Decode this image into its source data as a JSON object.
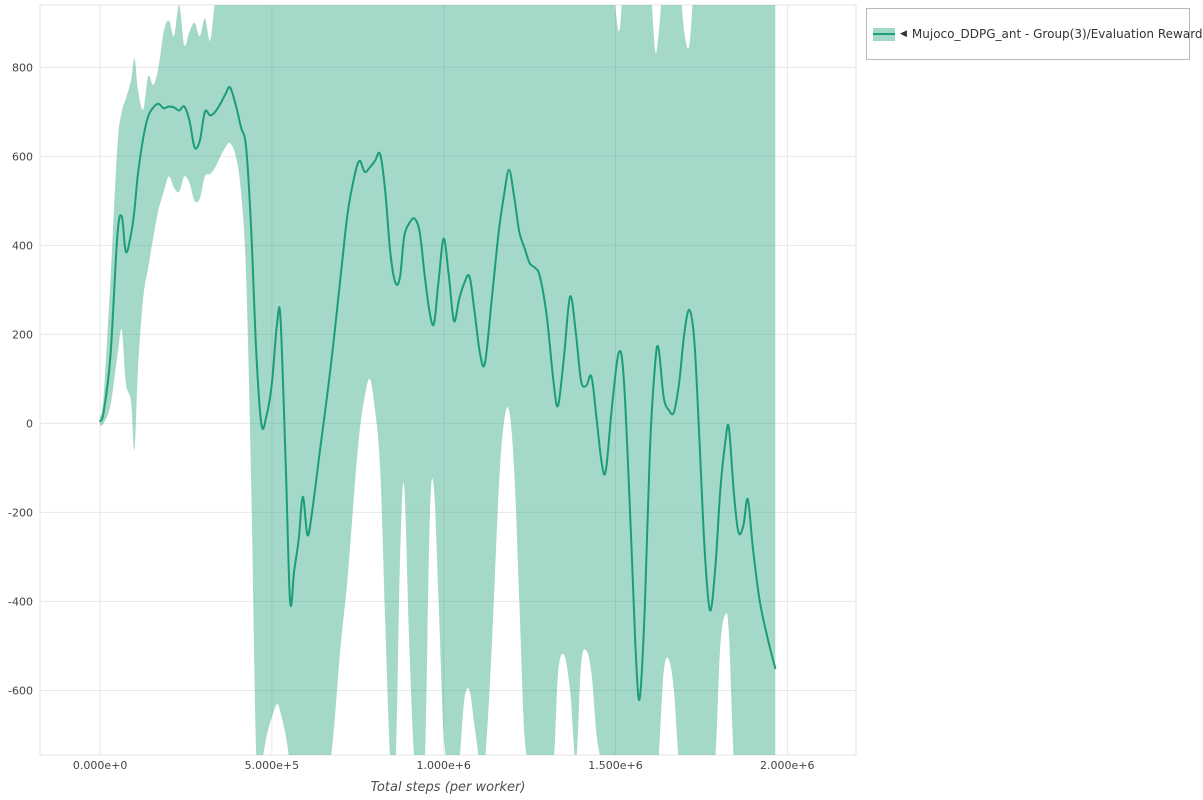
{
  "legend": {
    "collapse_icon": "◀",
    "series_label": "Mujoco_DDPG_ant - Group(3)/Evaluation Reward"
  },
  "axes": {
    "x_title": "Total steps (per worker)"
  },
  "chart_data": {
    "type": "line",
    "title": "",
    "xlabel": "Total steps (per worker)",
    "ylabel": "",
    "legend_entries": [
      "Mujoco_DDPG_ant - Group(3)/Evaluation Reward"
    ],
    "legend_position": "top-right",
    "grid": true,
    "x_scale": 1000000,
    "x_range_e6": [
      -0.175,
      2.2
    ],
    "y_range": [
      -745,
      940
    ],
    "x_ticks": [
      {
        "value_e6": 0.0,
        "label": "0.000e+0"
      },
      {
        "value_e6": 0.5,
        "label": "5.000e+5"
      },
      {
        "value_e6": 1.0,
        "label": "1.000e+6"
      },
      {
        "value_e6": 1.5,
        "label": "1.500e+6"
      },
      {
        "value_e6": 2.0,
        "label": "2.000e+6"
      }
    ],
    "y_ticks": [
      {
        "value": -600,
        "label": "-600"
      },
      {
        "value": -400,
        "label": "-400"
      },
      {
        "value": -200,
        "label": "-200"
      },
      {
        "value": 0,
        "label": "0"
      },
      {
        "value": 200,
        "label": "200"
      },
      {
        "value": 400,
        "label": "400"
      },
      {
        "value": 600,
        "label": "600"
      },
      {
        "value": 800,
        "label": "800"
      }
    ],
    "colors": {
      "line": "#1b9e77",
      "band_fill": "#1b9e77",
      "band_opacity": 0.4,
      "grid": "#e8e8e8",
      "plot_border": "#e4e4e4",
      "axis_text": "#444444",
      "title_text": "#4f4f4f",
      "legend_border": "#b9b9b9"
    },
    "series": [
      {
        "name": "Mujoco_DDPG_ant - Group(3)/Evaluation Reward",
        "x_e6": [
          0.0,
          0.01,
          0.03,
          0.05,
          0.063,
          0.075,
          0.09,
          0.1,
          0.11,
          0.125,
          0.14,
          0.155,
          0.17,
          0.185,
          0.2,
          0.215,
          0.23,
          0.245,
          0.26,
          0.275,
          0.29,
          0.305,
          0.32,
          0.335,
          0.35,
          0.365,
          0.378,
          0.395,
          0.41,
          0.425,
          0.44,
          0.455,
          0.47,
          0.485,
          0.5,
          0.515,
          0.525,
          0.54,
          0.553,
          0.565,
          0.578,
          0.59,
          0.603,
          0.615,
          0.64,
          0.67,
          0.7,
          0.72,
          0.74,
          0.755,
          0.77,
          0.785,
          0.8,
          0.815,
          0.83,
          0.845,
          0.86,
          0.873,
          0.885,
          0.9,
          0.915,
          0.93,
          0.945,
          0.96,
          0.972,
          0.985,
          1.0,
          1.015,
          1.03,
          1.045,
          1.06,
          1.075,
          1.09,
          1.105,
          1.12,
          1.14,
          1.16,
          1.175,
          1.19,
          1.205,
          1.22,
          1.235,
          1.25,
          1.265,
          1.28,
          1.3,
          1.32,
          1.333,
          1.35,
          1.368,
          1.385,
          1.4,
          1.415,
          1.43,
          1.445,
          1.46,
          1.472,
          1.49,
          1.51,
          1.525,
          1.545,
          1.558,
          1.57,
          1.585,
          1.6,
          1.615,
          1.625,
          1.64,
          1.655,
          1.67,
          1.685,
          1.7,
          1.715,
          1.73,
          1.745,
          1.76,
          1.775,
          1.79,
          1.805,
          1.82,
          1.83,
          1.845,
          1.858,
          1.872,
          1.885,
          1.9,
          1.92,
          1.945,
          1.965
        ],
        "mean": [
          5,
          25,
          150,
          420,
          465,
          385,
          425,
          480,
          560,
          640,
          690,
          710,
          718,
          708,
          712,
          710,
          703,
          712,
          680,
          620,
          635,
          700,
          692,
          700,
          718,
          740,
          755,
          715,
          665,
          620,
          430,
          150,
          -5,
          20,
          90,
          225,
          235,
          -90,
          -400,
          -330,
          -260,
          -165,
          -250,
          -210,
          -60,
          120,
          330,
          470,
          555,
          590,
          565,
          575,
          590,
          605,
          520,
          380,
          315,
          330,
          420,
          450,
          460,
          430,
          330,
          245,
          225,
          320,
          415,
          330,
          230,
          280,
          315,
          330,
          250,
          160,
          135,
          280,
          430,
          510,
          570,
          510,
          430,
          395,
          360,
          350,
          330,
          240,
          90,
          40,
          150,
          285,
          200,
          95,
          85,
          105,
          10,
          -90,
          -105,
          40,
          160,
          90,
          -250,
          -500,
          -620,
          -420,
          -60,
          130,
          170,
          60,
          30,
          25,
          90,
          200,
          255,
          180,
          -50,
          -290,
          -420,
          -330,
          -150,
          -40,
          -10,
          -160,
          -245,
          -230,
          -170,
          -280,
          -400,
          -490,
          -550
        ],
        "band_upper": [
          15,
          60,
          320,
          620,
          700,
          730,
          770,
          820,
          750,
          705,
          780,
          760,
          800,
          880,
          905,
          870,
          940,
          850,
          880,
          900,
          870,
          910,
          860,
          950,
          1000,
          1000,
          1000,
          1000,
          1000,
          1000,
          1000,
          1000,
          1000,
          1000,
          1000,
          1000,
          1000,
          1000,
          1000,
          1000,
          1000,
          1000,
          1000,
          1000,
          1000,
          1000,
          1000,
          1000,
          1000,
          1000,
          1000,
          1000,
          1000,
          1000,
          1000,
          1000,
          1000,
          1000,
          1000,
          1000,
          1000,
          1000,
          1000,
          1000,
          1000,
          1000,
          1000,
          1000,
          1000,
          1000,
          1000,
          1000,
          1000,
          1000,
          1000,
          1000,
          1000,
          1000,
          1000,
          1000,
          1000,
          1000,
          1000,
          1000,
          1000,
          1000,
          1000,
          1000,
          1000,
          1000,
          1000,
          1000,
          1000,
          1000,
          1000,
          1000,
          1000,
          1000,
          880,
          1000,
          1000,
          950,
          1000,
          1000,
          1000,
          840,
          870,
          1000,
          1000,
          1000,
          1000,
          880,
          850,
          1000,
          1000,
          1000,
          1000,
          1000,
          1000,
          1000,
          1000,
          1000,
          1000,
          1000,
          1000,
          1000,
          1000,
          1000,
          1000
        ],
        "band_lower": [
          -5,
          0,
          40,
          150,
          210,
          90,
          50,
          -60,
          120,
          280,
          350,
          420,
          480,
          520,
          555,
          530,
          520,
          555,
          540,
          500,
          505,
          555,
          560,
          575,
          600,
          620,
          630,
          600,
          520,
          330,
          -150,
          -760,
          -760,
          -700,
          -660,
          -630,
          -650,
          -700,
          -760,
          -760,
          -760,
          -760,
          -760,
          -760,
          -760,
          -760,
          -500,
          -350,
          -150,
          -20,
          60,
          100,
          30,
          -100,
          -450,
          -760,
          -760,
          -300,
          -140,
          -500,
          -760,
          -760,
          -760,
          -200,
          -150,
          -400,
          -700,
          -760,
          -760,
          -760,
          -620,
          -600,
          -680,
          -760,
          -760,
          -500,
          -150,
          0,
          30,
          -100,
          -400,
          -700,
          -760,
          -760,
          -760,
          -760,
          -760,
          -560,
          -520,
          -600,
          -760,
          -540,
          -510,
          -560,
          -700,
          -760,
          -760,
          -760,
          -760,
          -760,
          -760,
          -760,
          -760,
          -760,
          -760,
          -760,
          -760,
          -560,
          -530,
          -600,
          -760,
          -760,
          -760,
          -760,
          -760,
          -760,
          -760,
          -760,
          -500,
          -430,
          -470,
          -760,
          -760,
          -760,
          -760,
          -760,
          -760,
          -760,
          -760
        ]
      }
    ]
  }
}
